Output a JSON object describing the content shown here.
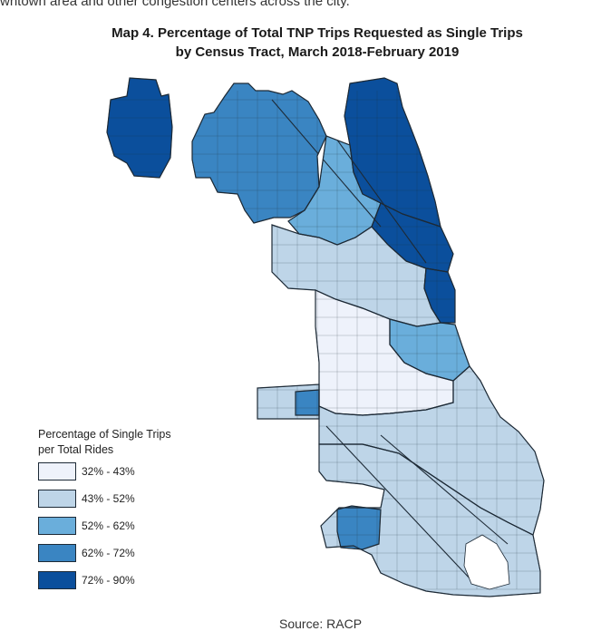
{
  "page": {
    "top_text": "wntown area and other congestion centers across the city.",
    "title_line1": "Map 4. Percentage of Total TNP Trips Requested as Single Trips",
    "title_line2": "by Census Tract, March 2018-February 2019",
    "source": "Source: RACP"
  },
  "legend": {
    "title_line1": "Percentage of Single Trips",
    "title_line2": "per Total Rides",
    "items": [
      {
        "label": "32% - 43%",
        "color": "#eef2fb"
      },
      {
        "label": "43% - 52%",
        "color": "#bed5e8"
      },
      {
        "label": "52% - 62%",
        "color": "#6aaedb"
      },
      {
        "label": "62% - 72%",
        "color": "#3a85c2"
      },
      {
        "label": "72% - 90%",
        "color": "#0b4f9c"
      }
    ]
  },
  "map": {
    "outline_color": "#1d2a36",
    "region_levels": {
      "ohare": 4,
      "northwest": 3,
      "north_east": 4,
      "north_mid": 2,
      "lakefront_north": 4,
      "downtown": 4,
      "west": 1,
      "near_south": 2,
      "south_central": 0,
      "south_east": 1,
      "southwest_prong": 1,
      "southwest_pocket": 3,
      "far_south": 1,
      "far_south_pocket": 3
    }
  }
}
